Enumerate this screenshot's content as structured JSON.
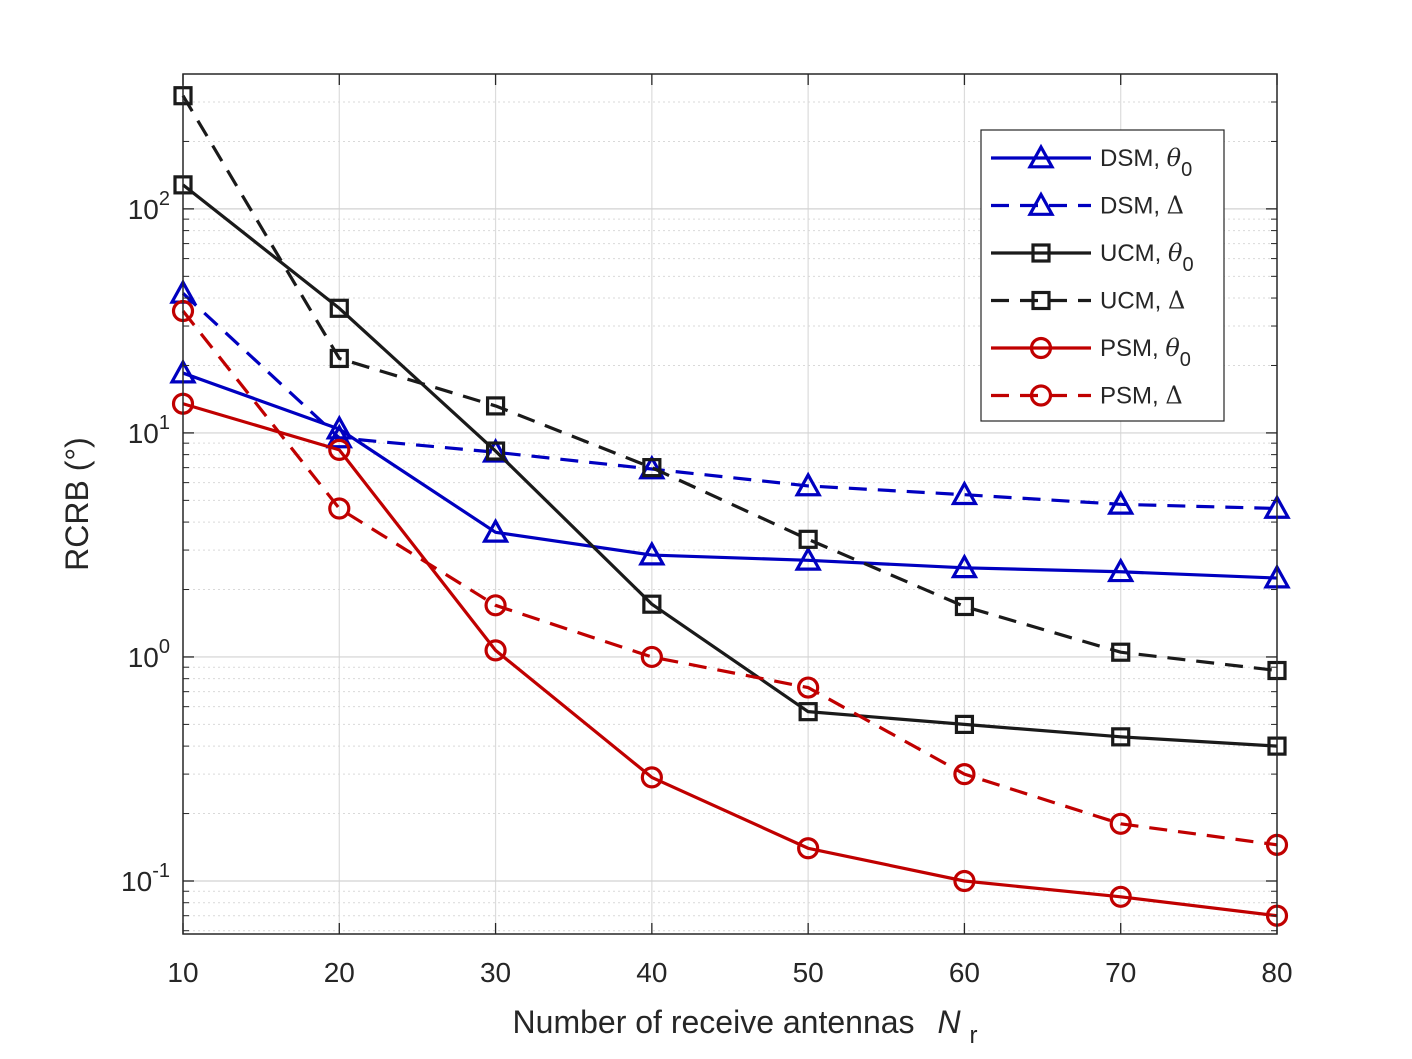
{
  "chart_data": {
    "type": "line",
    "title": "",
    "xlabel": "Number of receive antennas",
    "xlabel_symbol": "N",
    "xlabel_subscript": "r",
    "ylabel": "RCRB (°)",
    "yscale": "log",
    "x": [
      10,
      20,
      30,
      40,
      50,
      60,
      70,
      80
    ],
    "xlim": [
      10,
      80
    ],
    "ylim": [
      0.058,
      400
    ],
    "xticks": [
      "10",
      "20",
      "30",
      "40",
      "50",
      "60",
      "70",
      "80"
    ],
    "yticks": [
      {
        "base": "10",
        "exp": "-1",
        "value": 0.1
      },
      {
        "base": "10",
        "exp": "0",
        "value": 1
      },
      {
        "base": "10",
        "exp": "1",
        "value": 10
      },
      {
        "base": "10",
        "exp": "2",
        "value": 100
      }
    ],
    "grid": true,
    "legend_position": "top-right",
    "series": [
      {
        "name": "DSM, ",
        "symbol": "θ",
        "sub": "0",
        "color": "#0000c0",
        "dash": "solid",
        "marker": "triangle",
        "values": [
          18.5,
          10.4,
          3.6,
          2.85,
          2.7,
          2.5,
          2.4,
          2.25
        ]
      },
      {
        "name": "DSM, ",
        "symbol": "Δ",
        "sub": "",
        "color": "#0000c0",
        "dash": "dashed",
        "marker": "triangle",
        "values": [
          42,
          9.5,
          8.2,
          6.9,
          5.8,
          5.3,
          4.8,
          4.6
        ]
      },
      {
        "name": "UCM, ",
        "symbol": "θ",
        "sub": "0",
        "color": "#1a1a1a",
        "dash": "solid",
        "marker": "square",
        "values": [
          128,
          36,
          8.3,
          1.72,
          0.57,
          0.5,
          0.44,
          0.4
        ]
      },
      {
        "name": "UCM, ",
        "symbol": "Δ",
        "sub": "",
        "color": "#1a1a1a",
        "dash": "dashed",
        "marker": "square",
        "values": [
          320,
          21.5,
          13.2,
          7.0,
          3.35,
          1.68,
          1.05,
          0.87
        ]
      },
      {
        "name": "PSM, ",
        "symbol": "θ",
        "sub": "0",
        "color": "#c00000",
        "dash": "solid",
        "marker": "circle",
        "values": [
          13.5,
          8.4,
          1.07,
          0.29,
          0.14,
          0.1,
          0.085,
          0.07
        ]
      },
      {
        "name": "PSM, ",
        "symbol": "Δ",
        "sub": "",
        "color": "#c00000",
        "dash": "dashed",
        "marker": "circle",
        "values": [
          35,
          4.6,
          1.7,
          1.0,
          0.73,
          0.3,
          0.18,
          0.145
        ]
      }
    ]
  }
}
